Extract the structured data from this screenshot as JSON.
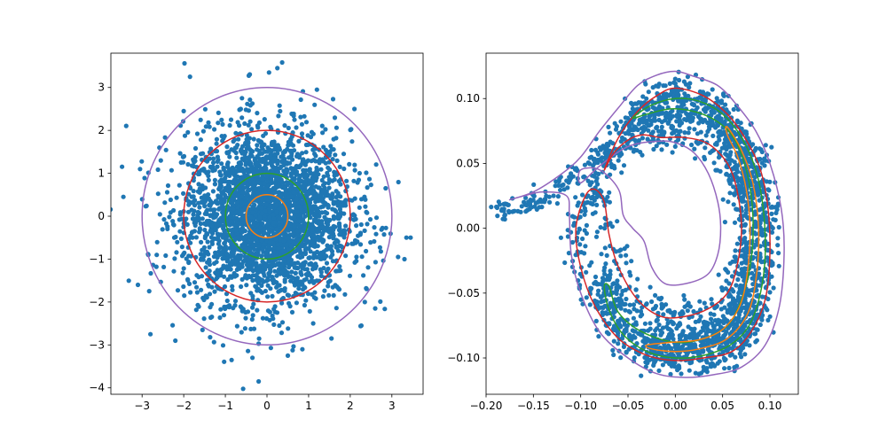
{
  "chart_data": [
    {
      "type": "scatter",
      "title": "",
      "xlabel": "",
      "ylabel": "",
      "xlim": [
        -3.75,
        3.75
      ],
      "ylim": [
        -4.15,
        3.8
      ],
      "xticks": [
        -3,
        -2,
        -1,
        0,
        1,
        2,
        3
      ],
      "xtick_labels": [
        "−3",
        "−2",
        "−1",
        "0",
        "1",
        "2",
        "3"
      ],
      "yticks": [
        -4,
        -3,
        -2,
        -1,
        0,
        1,
        2,
        3
      ],
      "ytick_labels": [
        "−4",
        "−3",
        "−2",
        "−1",
        "0",
        "1",
        "2",
        "3"
      ],
      "grid": false,
      "scatter": {
        "color": "#1f77b4",
        "distribution": "isotropic 2D Gaussian centred at (0, 0), standard deviation ≈ 1",
        "x": [
          -3.45,
          -3.1,
          -3.05,
          -2.8,
          -2.55,
          -2.2,
          -2.0,
          -1.85,
          -1.55,
          -0.85,
          -0.6,
          -0.35,
          0.05,
          0.25,
          0.5,
          1.2,
          1.55,
          2.1,
          2.35,
          2.6,
          2.85,
          3.15,
          3.35,
          3.45,
          -2.85,
          -0.2,
          0.85
        ],
        "y": [
          0.45,
          -1.6,
          1.1,
          -2.75,
          1.3,
          -2.9,
          2.45,
          3.25,
          -2.65,
          -3.35,
          2.75,
          -3.3,
          3.35,
          3.45,
          -3.25,
          2.95,
          -2.85,
          2.5,
          -2.0,
          -2.15,
          0.65,
          -0.95,
          -0.5,
          -0.5,
          -0.9,
          -3.85,
          -3.1
        ]
      },
      "contours": [
        {
          "shape": "circle",
          "radius": 0.5,
          "color": "#ff7f0e"
        },
        {
          "shape": "circle",
          "radius": 1.0,
          "color": "#2ca02c"
        },
        {
          "shape": "circle",
          "radius": 2.0,
          "color": "#d62728"
        },
        {
          "shape": "circle",
          "radius": 3.0,
          "color": "#9467bd"
        }
      ]
    },
    {
      "type": "scatter",
      "title": "",
      "xlabel": "",
      "ylabel": "",
      "xlim": [
        -0.2,
        0.13
      ],
      "ylim": [
        -0.128,
        0.135
      ],
      "xticks": [
        -0.2,
        -0.15,
        -0.1,
        -0.05,
        0.0,
        0.05,
        0.1
      ],
      "xtick_labels": [
        "−0.20",
        "−0.15",
        "−0.10",
        "−0.05",
        "0.00",
        "0.05",
        "0.10"
      ],
      "yticks": [
        -0.1,
        -0.05,
        0.0,
        0.05,
        0.1
      ],
      "ytick_labels": [
        "−0.10",
        "−0.05",
        "0.00",
        "0.05",
        "0.10"
      ],
      "grid": false,
      "scatter": {
        "color": "#1f77b4",
        "distribution": "dense curved band forming a spiral ring, with a thin tail extending to x ≈ -0.19, y ≈ 0.015"
      },
      "contours": [
        {
          "color": "#9467bd",
          "points": [
            [
              -0.175,
              0.022
            ],
            [
              -0.15,
              0.028
            ],
            [
              -0.12,
              0.042
            ],
            [
              -0.1,
              0.055
            ],
            [
              -0.08,
              0.075
            ],
            [
              -0.06,
              0.093
            ],
            [
              -0.04,
              0.11
            ],
            [
              -0.02,
              0.118
            ],
            [
              0.0,
              0.121
            ],
            [
              0.02,
              0.117
            ],
            [
              0.045,
              0.11
            ],
            [
              0.065,
              0.095
            ],
            [
              0.085,
              0.075
            ],
            [
              0.1,
              0.05
            ],
            [
              0.112,
              0.015
            ],
            [
              0.115,
              -0.02
            ],
            [
              0.11,
              -0.06
            ],
            [
              0.095,
              -0.09
            ],
            [
              0.07,
              -0.107
            ],
            [
              0.04,
              -0.113
            ],
            [
              0.01,
              -0.115
            ],
            [
              -0.02,
              -0.112
            ],
            [
              -0.05,
              -0.1
            ],
            [
              -0.08,
              -0.08
            ],
            [
              -0.1,
              -0.05
            ],
            [
              -0.11,
              -0.02
            ],
            [
              -0.112,
              0.01
            ],
            [
              -0.115,
              0.025
            ],
            [
              -0.14,
              0.028
            ],
            [
              -0.16,
              0.025
            ]
          ]
        },
        {
          "color": "#9467bd",
          "points": [
            [
              -0.1,
              0.035
            ],
            [
              -0.08,
              0.048
            ],
            [
              -0.05,
              0.063
            ],
            [
              -0.02,
              0.067
            ],
            [
              0.0,
              0.066
            ],
            [
              0.02,
              0.058
            ],
            [
              0.035,
              0.042
            ],
            [
              0.045,
              0.02
            ],
            [
              0.048,
              0.0
            ],
            [
              0.045,
              -0.02
            ],
            [
              0.035,
              -0.035
            ],
            [
              0.015,
              -0.042
            ],
            [
              -0.01,
              -0.043
            ],
            [
              -0.025,
              -0.03
            ],
            [
              -0.033,
              -0.01
            ],
            [
              -0.045,
              0.0
            ],
            [
              -0.055,
              0.01
            ],
            [
              -0.06,
              0.03
            ],
            [
              -0.08,
              0.045
            ],
            [
              -0.1,
              0.045
            ]
          ]
        },
        {
          "color": "#d62728",
          "points": [
            [
              -0.075,
              0.045
            ],
            [
              -0.06,
              0.07
            ],
            [
              -0.04,
              0.09
            ],
            [
              -0.02,
              0.102
            ],
            [
              0.0,
              0.108
            ],
            [
              0.03,
              0.102
            ],
            [
              0.055,
              0.088
            ],
            [
              0.075,
              0.068
            ],
            [
              0.09,
              0.045
            ],
            [
              0.098,
              0.015
            ],
            [
              0.1,
              -0.02
            ],
            [
              0.095,
              -0.055
            ],
            [
              0.08,
              -0.08
            ],
            [
              0.06,
              -0.095
            ],
            [
              0.03,
              -0.1
            ],
            [
              0.0,
              -0.102
            ],
            [
              -0.03,
              -0.098
            ],
            [
              -0.06,
              -0.085
            ],
            [
              -0.085,
              -0.06
            ],
            [
              -0.1,
              -0.03
            ],
            [
              -0.105,
              0.0
            ],
            [
              -0.095,
              0.025
            ],
            [
              -0.085,
              0.03
            ],
            [
              -0.075,
              0.02
            ],
            [
              -0.07,
              -0.005
            ],
            [
              -0.06,
              -0.03
            ],
            [
              -0.04,
              -0.055
            ],
            [
              -0.015,
              -0.068
            ],
            [
              0.01,
              -0.068
            ],
            [
              0.035,
              -0.062
            ],
            [
              0.055,
              -0.05
            ],
            [
              0.065,
              -0.03
            ],
            [
              0.07,
              0.0
            ],
            [
              0.065,
              0.03
            ],
            [
              0.055,
              0.05
            ],
            [
              0.035,
              0.065
            ],
            [
              0.01,
              0.07
            ],
            [
              -0.015,
              0.07
            ],
            [
              -0.035,
              0.072
            ],
            [
              -0.05,
              0.068
            ],
            [
              -0.065,
              0.058
            ]
          ]
        },
        {
          "color": "#2ca02c",
          "points": [
            [
              -0.045,
              0.085
            ],
            [
              -0.025,
              0.095
            ],
            [
              0.0,
              0.1
            ],
            [
              0.025,
              0.098
            ],
            [
              0.05,
              0.088
            ],
            [
              0.07,
              0.07
            ],
            [
              0.085,
              0.045
            ],
            [
              0.093,
              0.015
            ],
            [
              0.095,
              -0.02
            ],
            [
              0.09,
              -0.05
            ],
            [
              0.078,
              -0.075
            ],
            [
              0.058,
              -0.09
            ],
            [
              0.03,
              -0.098
            ],
            [
              0.0,
              -0.1
            ],
            [
              -0.03,
              -0.095
            ],
            [
              -0.055,
              -0.082
            ],
            [
              -0.07,
              -0.063
            ],
            [
              -0.075,
              -0.045
            ],
            [
              -0.07,
              -0.045
            ],
            [
              -0.06,
              -0.065
            ],
            [
              -0.035,
              -0.08
            ],
            [
              0.0,
              -0.088
            ],
            [
              0.03,
              -0.085
            ],
            [
              0.055,
              -0.075
            ],
            [
              0.07,
              -0.055
            ],
            [
              0.08,
              -0.025
            ],
            [
              0.082,
              0.01
            ],
            [
              0.076,
              0.042
            ],
            [
              0.063,
              0.068
            ],
            [
              0.045,
              0.082
            ],
            [
              0.02,
              0.09
            ],
            [
              -0.005,
              0.092
            ],
            [
              -0.03,
              0.088
            ]
          ]
        },
        {
          "color": "#ff7f0e",
          "points": [
            [
              0.055,
              0.078
            ],
            [
              0.07,
              0.06
            ],
            [
              0.082,
              0.035
            ],
            [
              0.088,
              0.0
            ],
            [
              0.086,
              -0.035
            ],
            [
              0.077,
              -0.065
            ],
            [
              0.055,
              -0.085
            ],
            [
              0.025,
              -0.093
            ],
            [
              0.0,
              -0.095
            ],
            [
              -0.025,
              -0.093
            ],
            [
              -0.03,
              -0.09
            ],
            [
              -0.005,
              -0.088
            ],
            [
              0.025,
              -0.086
            ],
            [
              0.05,
              -0.078
            ],
            [
              0.068,
              -0.06
            ],
            [
              0.076,
              -0.035
            ],
            [
              0.079,
              0.0
            ],
            [
              0.075,
              0.03
            ],
            [
              0.066,
              0.055
            ],
            [
              0.055,
              0.072
            ]
          ]
        }
      ]
    }
  ]
}
